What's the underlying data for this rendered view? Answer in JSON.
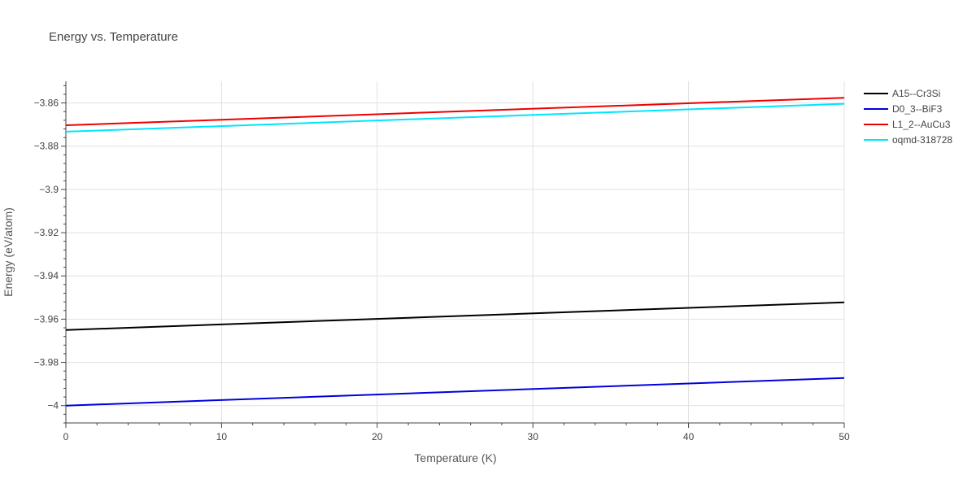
{
  "chart_data": {
    "type": "line",
    "title": "Energy vs. Temperature",
    "xlabel": "Temperature (K)",
    "ylabel": "Energy (eV/atom)",
    "xlim": [
      0,
      50
    ],
    "ylim": [
      -4.008,
      -3.85
    ],
    "xticks": [
      0,
      10,
      20,
      30,
      40,
      50
    ],
    "xtick_labels": [
      "0",
      "10",
      "20",
      "30",
      "40",
      "50"
    ],
    "yticks": [
      -4,
      -3.98,
      -3.96,
      -3.94,
      -3.92,
      -3.9,
      -3.88,
      -3.86
    ],
    "ytick_labels": [
      "−4",
      "−3.98",
      "−3.96",
      "−3.94",
      "−3.92",
      "−3.9",
      "−3.88",
      "−3.86"
    ],
    "grid": true,
    "legend_position": "top-right",
    "series": [
      {
        "name": "A15--Cr3Si",
        "color": "#000000",
        "x": [
          0,
          50
        ],
        "y": [
          -3.965,
          -3.9522
        ]
      },
      {
        "name": "D0_3--BiF3",
        "color": "#0000dd",
        "x": [
          0,
          50
        ],
        "y": [
          -4.0,
          -3.9872
        ]
      },
      {
        "name": "L1_2--AuCu3",
        "color": "#ee0000",
        "x": [
          0,
          50
        ],
        "y": [
          -3.8703,
          -3.8576
        ]
      },
      {
        "name": "oqmd-318728",
        "color": "#00e5ff",
        "x": [
          0,
          50
        ],
        "y": [
          -3.8733,
          -3.8604
        ]
      }
    ]
  }
}
